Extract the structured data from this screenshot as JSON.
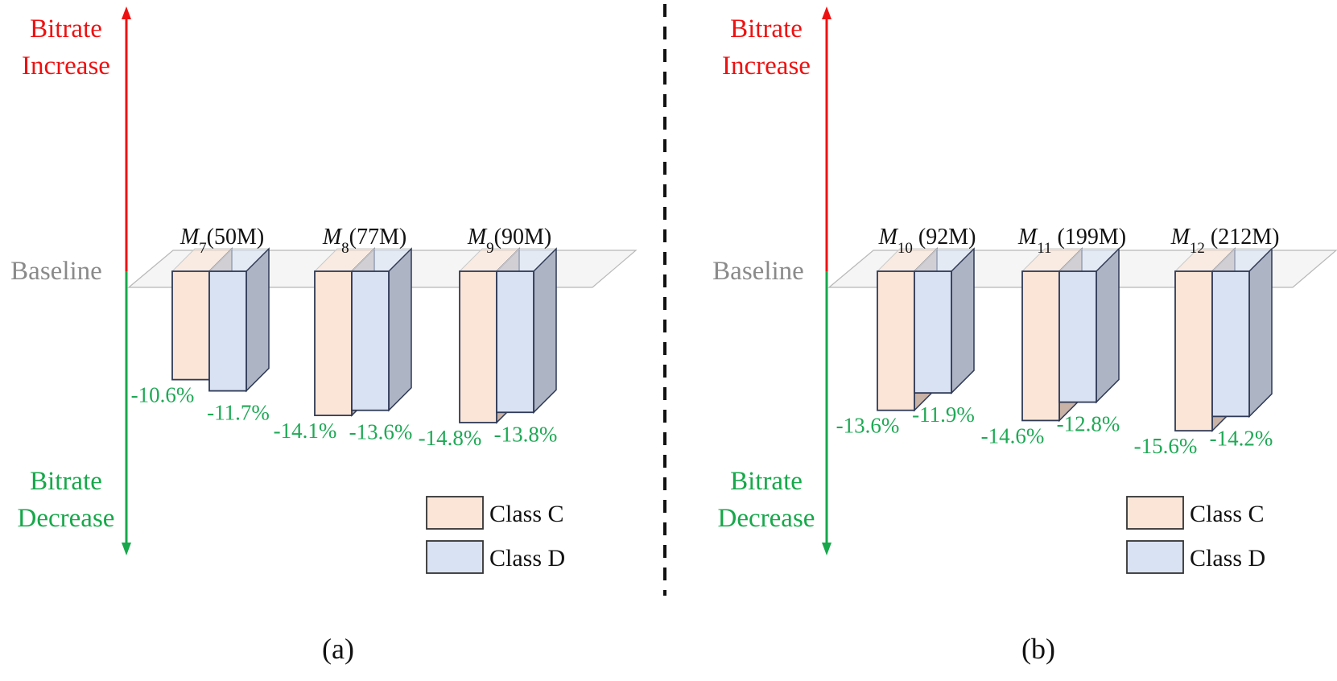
{
  "colors": {
    "increase": "#ee1111",
    "decrease": "#16a84a",
    "baseline_text": "#8a8a8a",
    "class_c_front": "#fbe5d6",
    "class_c_side": "#c9b2a6",
    "class_d_front": "#d9e2f3",
    "class_d_side": "#adb4c4",
    "bar_stroke": "#2f3a56",
    "plane_fill": "#ececec",
    "label_text": "#1ea955"
  },
  "panels": [
    {
      "caption": "(a)",
      "increase_label": [
        "Bitrate",
        "Increase"
      ],
      "decrease_label": [
        "Bitrate",
        "Decrease"
      ],
      "baseline_label": "Baseline",
      "legend": [
        {
          "label": "Class C",
          "color": "#fbe5d6"
        },
        {
          "label": "Class D",
          "color": "#d9e2f3"
        }
      ]
    },
    {
      "caption": "(b)",
      "increase_label": [
        "Bitrate",
        "Increase"
      ],
      "decrease_label": [
        "Bitrate",
        "Decrease"
      ],
      "baseline_label": "Baseline",
      "legend": [
        {
          "label": "Class C",
          "color": "#fbe5d6"
        },
        {
          "label": "Class D",
          "color": "#d9e2f3"
        }
      ]
    }
  ],
  "chart_data": [
    {
      "type": "bar",
      "categories": [
        "M7(50M)",
        "M8(77M)",
        "M9(90M)"
      ],
      "category_parts": [
        {
          "base": "M",
          "sub": "7",
          "suffix": "(50M)"
        },
        {
          "base": "M",
          "sub": "8",
          "suffix": "(77M)"
        },
        {
          "base": "M",
          "sub": "9",
          "suffix": "(90M)"
        }
      ],
      "series": [
        {
          "name": "Class C",
          "values": [
            -10.6,
            -14.1,
            -14.8
          ],
          "labels": [
            "-10.6%",
            "-14.1%",
            "-14.8%"
          ]
        },
        {
          "name": "Class D",
          "values": [
            -11.7,
            -13.6,
            -13.8
          ],
          "labels": [
            "-11.7%",
            "-13.6%",
            "-13.8%"
          ]
        }
      ],
      "legend_position": "bottom-right",
      "grid": false
    },
    {
      "type": "bar",
      "categories": [
        "M10 (92M)",
        "M11 (199M)",
        "M12 (212M)"
      ],
      "category_parts": [
        {
          "base": "M",
          "sub": "10",
          "suffix": " (92M)"
        },
        {
          "base": "M",
          "sub": "11",
          "suffix": " (199M)"
        },
        {
          "base": "M",
          "sub": "12",
          "suffix": " (212M)"
        }
      ],
      "series": [
        {
          "name": "Class C",
          "values": [
            -13.6,
            -14.6,
            -15.6
          ],
          "labels": [
            "-13.6%",
            "-14.6%",
            "-15.6%"
          ]
        },
        {
          "name": "Class D",
          "values": [
            -11.9,
            -12.8,
            -14.2
          ],
          "labels": [
            "-11.9%",
            "-12.8%",
            "-14.2%"
          ]
        }
      ],
      "legend_position": "bottom-right",
      "grid": false
    }
  ]
}
